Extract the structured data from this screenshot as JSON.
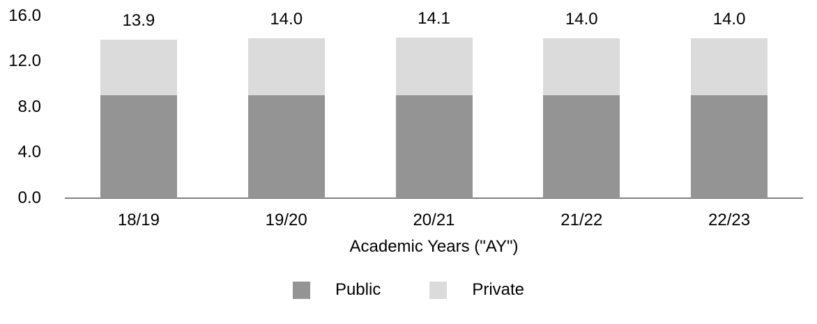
{
  "chart_data": {
    "type": "bar",
    "stacked": true,
    "title": "",
    "categories": [
      "18/19",
      "19/20",
      "20/21",
      "21/22",
      "22/23"
    ],
    "series": [
      {
        "name": "Public",
        "color": "#949494",
        "values": [
          9.0,
          9.0,
          9.0,
          9.0,
          9.0
        ]
      },
      {
        "name": "Private",
        "color": "#DBDBDB",
        "values": [
          4.9,
          5.0,
          5.1,
          5.0,
          5.0
        ]
      }
    ],
    "total_labels": [
      "13.9",
      "14.0",
      "14.1",
      "14.0",
      "14.0"
    ],
    "xlabel": "Academic Years (\"AY\")",
    "ylabel": "",
    "ylim": [
      0,
      16
    ],
    "yticks": [
      {
        "value": 16,
        "label": "16.0"
      },
      {
        "value": 12,
        "label": "12.0"
      },
      {
        "value": 8,
        "label": "8.0"
      },
      {
        "value": 4,
        "label": "4.0"
      },
      {
        "value": 0,
        "label": "0.0"
      }
    ],
    "legend": {
      "position": "bottom",
      "entries": [
        "Public",
        "Private"
      ]
    },
    "grid": false,
    "axis_line_color": "#808080",
    "text_color": "#000000",
    "background": "#FFFFFF"
  }
}
